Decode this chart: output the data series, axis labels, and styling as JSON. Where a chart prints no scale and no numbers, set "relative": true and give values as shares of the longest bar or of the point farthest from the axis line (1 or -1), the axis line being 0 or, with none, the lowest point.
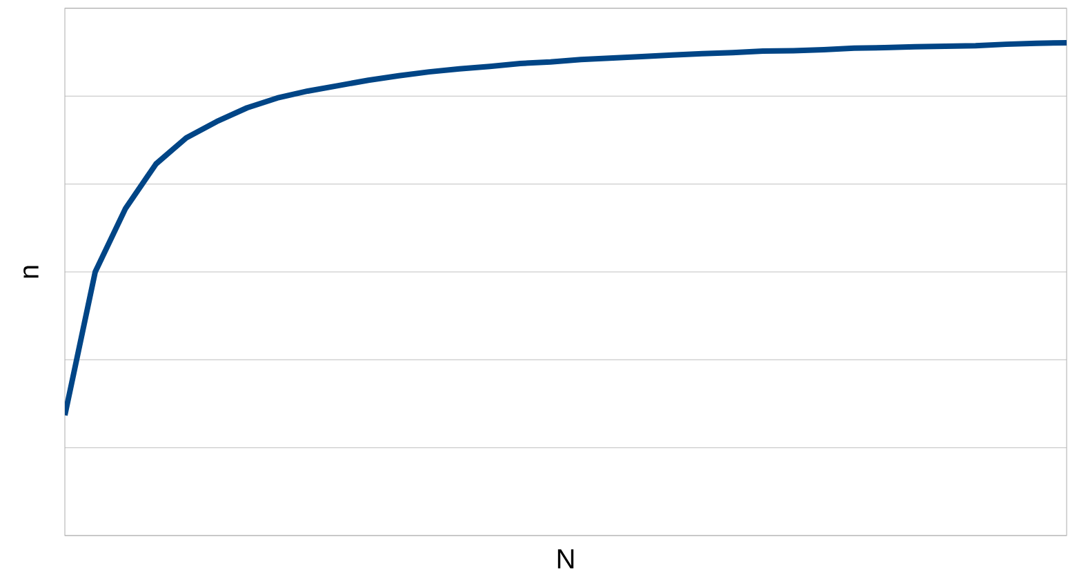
{
  "chart_data": {
    "type": "line",
    "xlabel": "N",
    "ylabel": "n",
    "relative": true,
    "grid": "y",
    "marker": "none",
    "line_style": "solid",
    "categories": [
      null,
      null,
      null,
      null,
      null,
      null,
      null,
      null,
      null,
      null,
      null,
      null,
      null,
      null,
      null,
      null,
      null,
      null,
      null,
      null,
      null,
      null,
      null,
      null,
      null,
      null,
      null,
      null,
      null,
      null,
      null,
      null,
      null,
      null
    ],
    "series": [
      {
        "color": "#004586",
        "values": [
          0.244,
          0.535,
          0.664,
          0.754,
          0.807,
          0.84,
          0.868,
          0.888,
          0.902,
          0.913,
          0.924,
          0.933,
          0.941,
          0.947,
          0.952,
          0.958,
          0.961,
          0.966,
          0.969,
          0.972,
          0.975,
          0.978,
          0.98,
          0.983,
          0.984,
          0.986,
          0.989,
          0.99,
          0.992,
          0.993,
          0.994,
          0.997,
          0.999,
          1.0
        ]
      }
    ]
  }
}
